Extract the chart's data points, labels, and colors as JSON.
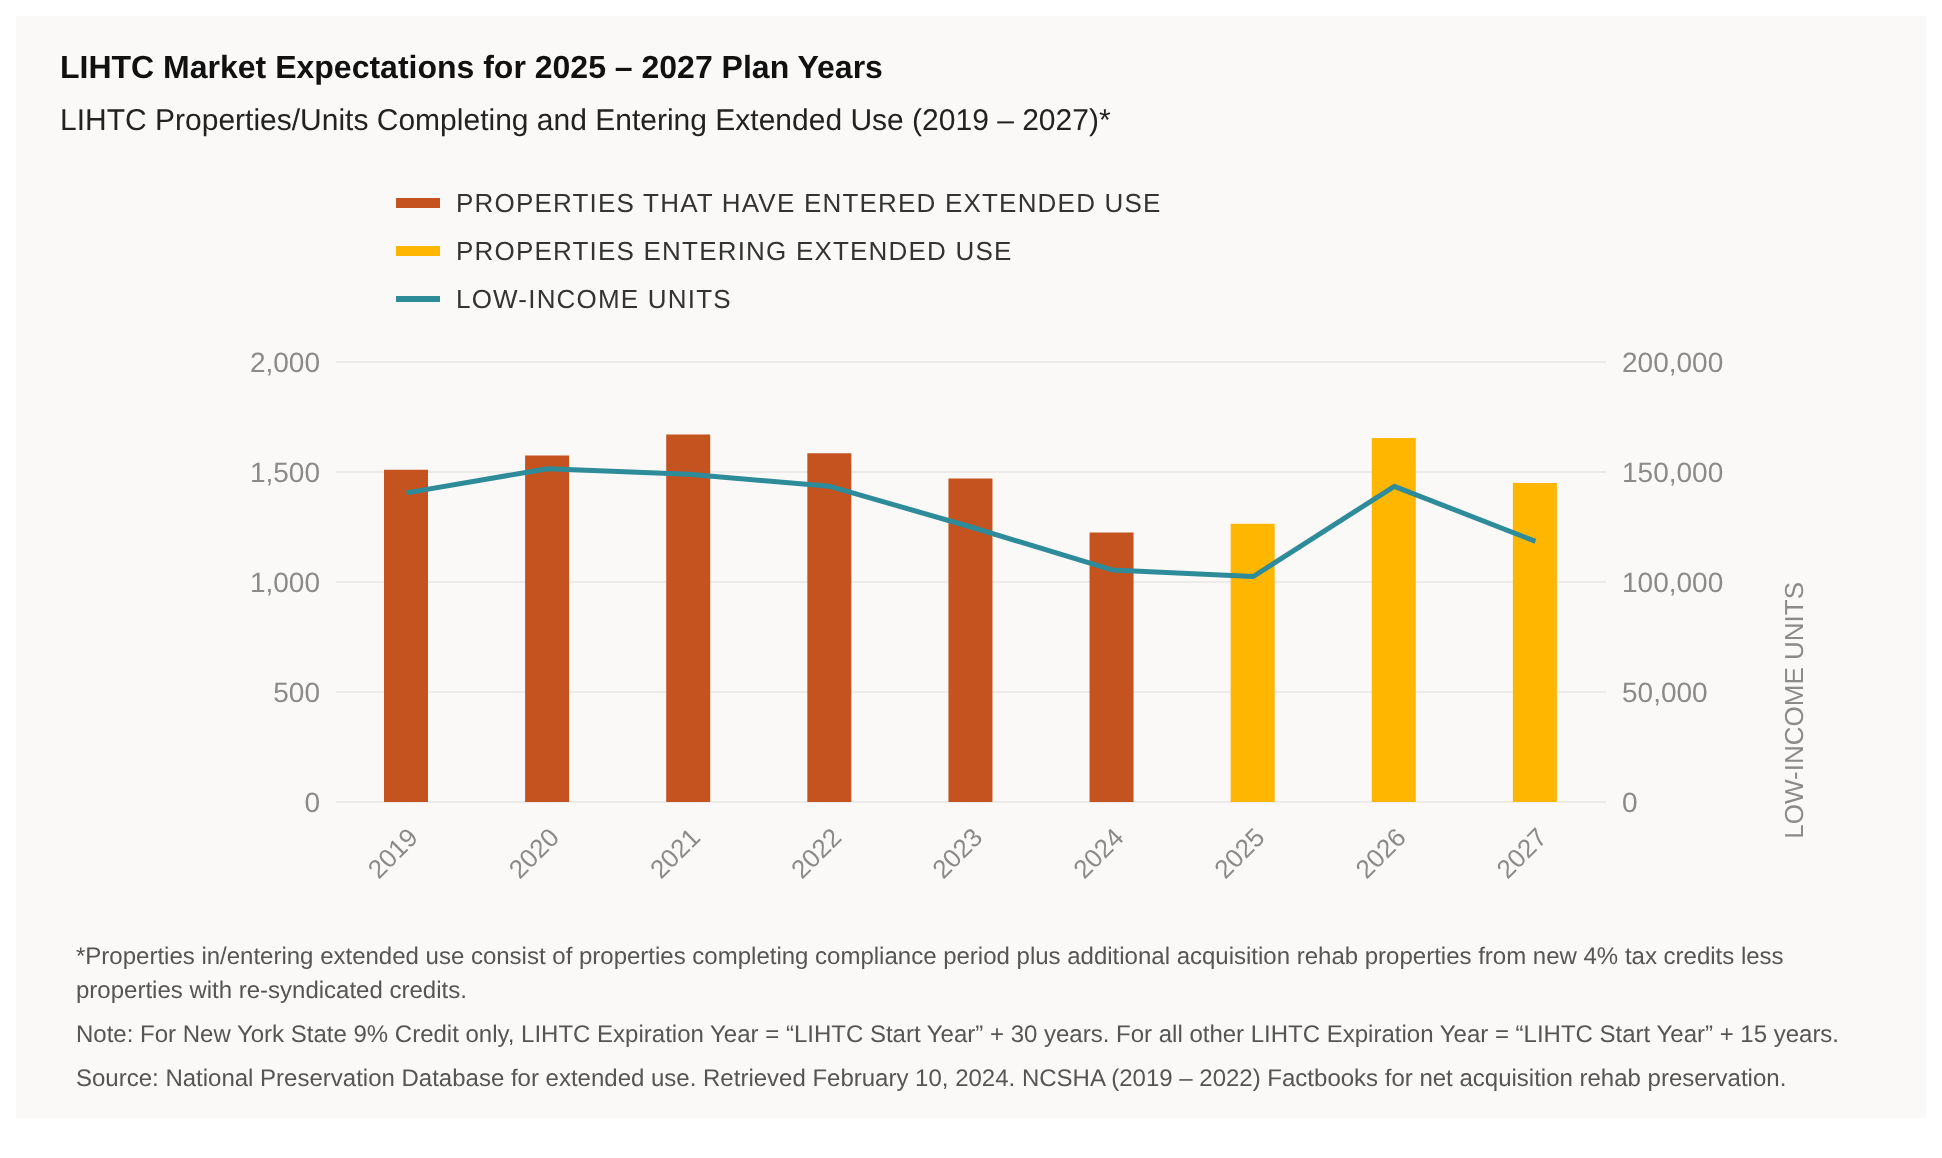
{
  "chart_data": {
    "type": "bar",
    "title": "LIHTC Market Expectations for 2025 – 2027 Plan Years",
    "subtitle": "LIHTC Properties/Units Completing and Entering Extended Use (2019 – 2027)*",
    "y2label": "LOW-INCOME UNITS",
    "categories": [
      "2019",
      "2020",
      "2021",
      "2022",
      "2023",
      "2024",
      "2025",
      "2026",
      "2027"
    ],
    "series": [
      {
        "name": "PROPERTIES THAT HAVE ENTERED EXTENDED USE",
        "color": "#c4531f",
        "values": [
          1510,
          1575,
          1670,
          1585,
          1470,
          1225,
          null,
          null,
          null
        ]
      },
      {
        "name": "PROPERTIES ENTERING EXTENDED USE",
        "color": "#ffb600",
        "values": [
          null,
          null,
          null,
          null,
          null,
          null,
          1265,
          1655,
          1450
        ]
      },
      {
        "name": "LOW-INCOME UNITS",
        "type": "line",
        "axis": "y2",
        "color": "#2e8b9a",
        "values": [
          140500,
          151500,
          149000,
          143500,
          125000,
          105500,
          102500,
          143500,
          118500
        ]
      }
    ],
    "ylim": [
      0,
      2000
    ],
    "yticks": [
      {
        "value": 0,
        "label": "0"
      },
      {
        "value": 500,
        "label": "500"
      },
      {
        "value": 1000,
        "label": "1,000"
      },
      {
        "value": 1500,
        "label": "1,500"
      },
      {
        "value": 2000,
        "label": "2,000"
      }
    ],
    "y2lim": [
      0,
      200000
    ],
    "y2ticks": [
      {
        "value": 0,
        "label": "0"
      },
      {
        "value": 50000,
        "label": "50,000"
      },
      {
        "value": 100000,
        "label": "100,000"
      },
      {
        "value": 150000,
        "label": "150,000"
      },
      {
        "value": 200000,
        "label": "200,000"
      }
    ],
    "grid": "y",
    "legend": "top",
    "marker": "none",
    "line_style": "solid",
    "annotations": [
      "*Properties in/entering extended use consist of properties completing compliance period plus additional acquisition rehab properties from new 4% tax credits less properties with re-syndicated credits.",
      "Note: For New York State 9% Credit only, LIHTC Expiration Year = “LIHTC Start Year” + 30 years. For all other LIHTC Expiration Year = “LIHTC Start Year” + 15 years.",
      "Source: National Preservation Database for extended use. Retrieved February 10, 2024. NCSHA (2019 – 2022) Factbooks for net acquisition rehab preservation."
    ]
  }
}
